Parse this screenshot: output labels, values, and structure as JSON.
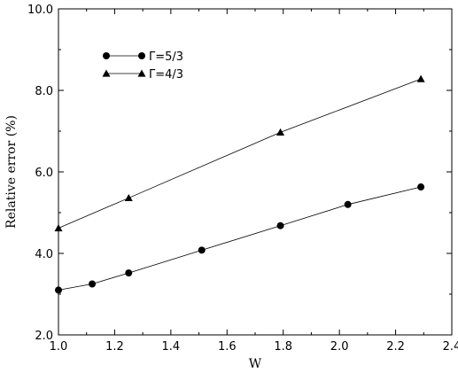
{
  "chart_data": {
    "type": "line",
    "title": "",
    "xlabel": "W",
    "ylabel": "Relative error (%)",
    "xlim": [
      1.0,
      2.4
    ],
    "ylim": [
      2.0,
      10.0
    ],
    "xticks": [
      "1.0",
      "1.2",
      "1.4",
      "1.6",
      "1.8",
      "2.0",
      "2.2",
      "2.4"
    ],
    "yticks": [
      "2.0",
      "4.0",
      "6.0",
      "8.0",
      "10.0"
    ],
    "grid": false,
    "legend_position": "top-left",
    "series": [
      {
        "name": "Γ=5/3",
        "marker": "circle",
        "color": "#000000",
        "x": [
          1.0,
          1.12,
          1.25,
          1.51,
          1.79,
          2.03,
          2.29
        ],
        "y": [
          3.1,
          3.25,
          3.52,
          4.08,
          4.68,
          5.2,
          5.63
        ]
      },
      {
        "name": "Γ=4/3",
        "marker": "triangle",
        "color": "#000000",
        "x": [
          1.0,
          1.25,
          1.79,
          2.29
        ],
        "y": [
          4.62,
          5.36,
          6.97,
          8.28
        ]
      }
    ]
  }
}
